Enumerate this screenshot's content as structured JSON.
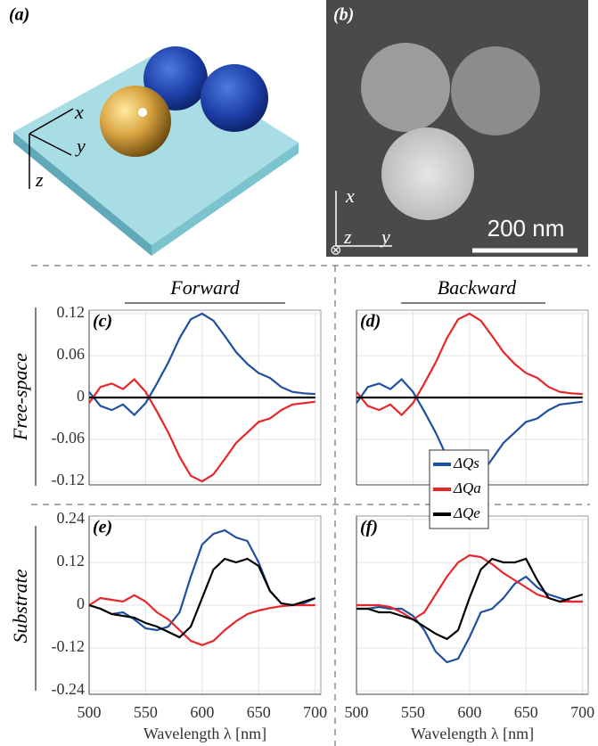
{
  "figure": {
    "panel_a": {
      "label": "(a)",
      "axis_x": "x",
      "axis_y": "y",
      "axis_z": "z"
    },
    "panel_b": {
      "label": "(b)",
      "axis_x": "x",
      "axis_y": "y",
      "axis_z": "z",
      "axis_out": "⊗",
      "scale_bar": "200 nm"
    },
    "columns": [
      "Forward",
      "Backward"
    ],
    "rows": [
      "Free-space",
      "Substrate"
    ]
  },
  "chart_data": [
    {
      "type": "line",
      "panel": "(c)",
      "xlim": [
        500,
        705
      ],
      "ylim": [
        -0.125,
        0.125
      ],
      "xticks": [
        500,
        550,
        600,
        650,
        700
      ],
      "yticks": [
        0.12,
        0.06,
        0,
        -0.06,
        -0.12
      ],
      "grid": true,
      "show_xtick_labels": false,
      "show_ytick_labels": true,
      "x": [
        500,
        510,
        520,
        530,
        540,
        550,
        560,
        570,
        580,
        590,
        600,
        610,
        620,
        630,
        640,
        650,
        660,
        670,
        680,
        690,
        700
      ],
      "series": [
        {
          "name": "ΔQs",
          "color": "#1f4fa0",
          "values": [
            0.008,
            -0.012,
            -0.018,
            -0.01,
            -0.025,
            -0.008,
            0.02,
            0.05,
            0.085,
            0.112,
            0.12,
            0.11,
            0.088,
            0.065,
            0.048,
            0.035,
            0.028,
            0.015,
            0.008,
            0.006,
            0.005
          ]
        },
        {
          "name": "ΔQa",
          "color": "#e8262a",
          "values": [
            -0.008,
            0.015,
            0.02,
            0.012,
            0.026,
            0.008,
            -0.02,
            -0.05,
            -0.085,
            -0.112,
            -0.12,
            -0.11,
            -0.088,
            -0.065,
            -0.05,
            -0.035,
            -0.03,
            -0.018,
            -0.01,
            -0.008,
            -0.006
          ]
        },
        {
          "name": "ΔQe",
          "color": "#000000",
          "values": [
            0,
            0,
            0,
            0,
            0,
            0,
            0,
            0,
            0,
            0,
            0,
            0,
            0,
            0,
            0,
            0,
            0,
            0,
            0,
            0,
            0
          ]
        }
      ]
    },
    {
      "type": "line",
      "panel": "(d)",
      "xlim": [
        500,
        705
      ],
      "ylim": [
        -0.125,
        0.125
      ],
      "xticks": [
        500,
        550,
        600,
        650,
        700
      ],
      "yticks": [
        0.12,
        0.06,
        0,
        -0.06,
        -0.12
      ],
      "grid": true,
      "show_xtick_labels": false,
      "show_ytick_labels": false,
      "legend": "lower right",
      "x": [
        500,
        510,
        520,
        530,
        540,
        550,
        560,
        570,
        580,
        590,
        600,
        610,
        620,
        630,
        640,
        650,
        660,
        670,
        680,
        690,
        700
      ],
      "series": [
        {
          "name": "ΔQs",
          "color": "#1f4fa0",
          "values": [
            -0.008,
            0.015,
            0.02,
            0.012,
            0.026,
            0.008,
            -0.02,
            -0.05,
            -0.085,
            -0.112,
            -0.12,
            -0.11,
            -0.088,
            -0.065,
            -0.05,
            -0.035,
            -0.03,
            -0.018,
            -0.01,
            -0.008,
            -0.006
          ]
        },
        {
          "name": "ΔQa",
          "color": "#e8262a",
          "values": [
            0.008,
            -0.012,
            -0.018,
            -0.01,
            -0.025,
            -0.008,
            0.02,
            0.05,
            0.085,
            0.112,
            0.12,
            0.11,
            0.088,
            0.065,
            0.048,
            0.035,
            0.028,
            0.015,
            0.008,
            0.006,
            0.005
          ]
        },
        {
          "name": "ΔQe",
          "color": "#000000",
          "values": [
            0,
            0,
            0,
            0,
            0,
            0,
            0,
            0,
            0,
            0,
            0,
            0,
            0,
            0,
            0,
            0,
            0,
            0,
            0,
            0,
            0
          ]
        }
      ]
    },
    {
      "type": "line",
      "panel": "(e)",
      "xlabel": "Wavelength λ [nm]",
      "xlim": [
        500,
        705
      ],
      "ylim": [
        -0.25,
        0.25
      ],
      "xticks": [
        500,
        550,
        600,
        650,
        700
      ],
      "yticks": [
        0.24,
        0.12,
        0,
        -0.12,
        -0.24
      ],
      "grid": true,
      "show_xtick_labels": true,
      "show_ytick_labels": true,
      "x": [
        500,
        510,
        520,
        530,
        540,
        550,
        560,
        570,
        580,
        590,
        600,
        610,
        620,
        630,
        640,
        650,
        660,
        670,
        680,
        690,
        700
      ],
      "series": [
        {
          "name": "ΔQs",
          "color": "#1f4fa0",
          "values": [
            0,
            -0.01,
            -0.025,
            -0.02,
            -0.04,
            -0.065,
            -0.07,
            -0.06,
            -0.02,
            0.08,
            0.17,
            0.2,
            0.21,
            0.19,
            0.18,
            0.12,
            0.04,
            0.005,
            0,
            0.005,
            0.02
          ]
        },
        {
          "name": "ΔQa",
          "color": "#e8262a",
          "values": [
            0,
            0.02,
            0.015,
            0.01,
            0.028,
            0.01,
            -0.02,
            -0.04,
            -0.07,
            -0.1,
            -0.112,
            -0.1,
            -0.07,
            -0.045,
            -0.025,
            -0.015,
            -0.008,
            -0.003,
            0,
            0,
            0
          ]
        },
        {
          "name": "ΔQe",
          "color": "#000000",
          "values": [
            0,
            -0.01,
            -0.025,
            -0.03,
            -0.035,
            -0.05,
            -0.06,
            -0.075,
            -0.09,
            -0.06,
            0.02,
            0.1,
            0.13,
            0.12,
            0.13,
            0.11,
            0.04,
            0.005,
            0,
            0.01,
            0.02
          ]
        }
      ]
    },
    {
      "type": "line",
      "panel": "(f)",
      "xlabel": "Wavelength λ [nm]",
      "xlim": [
        500,
        705
      ],
      "ylim": [
        -0.25,
        0.25
      ],
      "xticks": [
        500,
        550,
        600,
        650,
        700
      ],
      "yticks": [
        0.24,
        0.12,
        0,
        -0.12,
        -0.24
      ],
      "grid": true,
      "show_xtick_labels": true,
      "show_ytick_labels": false,
      "x": [
        500,
        510,
        520,
        530,
        540,
        550,
        560,
        570,
        580,
        590,
        600,
        610,
        620,
        630,
        640,
        650,
        660,
        670,
        680,
        690,
        700
      ],
      "series": [
        {
          "name": "ΔQs",
          "color": "#1f4fa0",
          "values": [
            -0.01,
            -0.01,
            -0.005,
            -0.01,
            -0.01,
            -0.03,
            -0.07,
            -0.13,
            -0.16,
            -0.15,
            -0.09,
            -0.02,
            -0.01,
            0.02,
            0.06,
            0.08,
            0.05,
            0.03,
            0.02,
            0.01,
            0.01
          ]
        },
        {
          "name": "ΔQa",
          "color": "#e8262a",
          "values": [
            0,
            0,
            0,
            -0.005,
            -0.02,
            -0.04,
            -0.02,
            0.03,
            0.08,
            0.12,
            0.14,
            0.135,
            0.115,
            0.09,
            0.07,
            0.05,
            0.03,
            0.02,
            0.01,
            0.01,
            0.01
          ]
        },
        {
          "name": "ΔQe",
          "color": "#000000",
          "values": [
            -0.01,
            -0.01,
            -0.02,
            -0.02,
            -0.03,
            -0.04,
            -0.06,
            -0.08,
            -0.095,
            -0.07,
            0.02,
            0.1,
            0.13,
            0.12,
            0.12,
            0.13,
            0.07,
            0.02,
            0.01,
            0.02,
            0.03
          ]
        }
      ]
    }
  ]
}
